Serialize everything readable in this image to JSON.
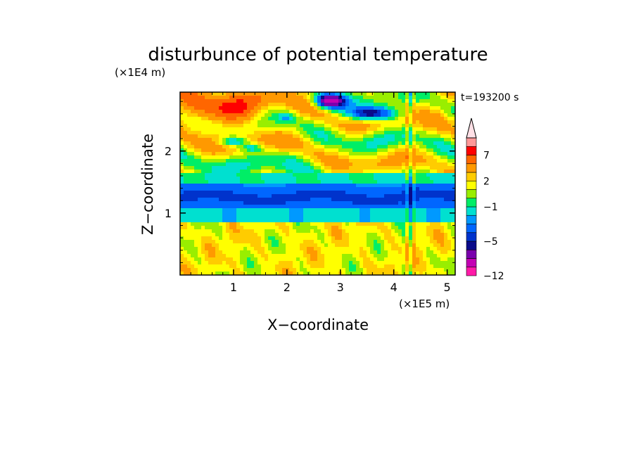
{
  "chart_data": {
    "type": "heatmap",
    "title": "disturbunce of potential temperature",
    "annotation": "t=193200 s",
    "xlabel": "X−coordinate",
    "ylabel": "Z−coordinate",
    "x_unit": "(×1E5 m)",
    "y_unit": "(×1E4 m)",
    "xlim": [
      0,
      5.15
    ],
    "ylim": [
      0,
      2.95
    ],
    "x_ticks": [
      1,
      2,
      3,
      4,
      5
    ],
    "x_tick_labels": [
      "1",
      "2",
      "3",
      "4",
      "5"
    ],
    "y_ticks": [
      1,
      2
    ],
    "y_tick_labels": [
      "1",
      "2"
    ],
    "grid": false,
    "colorbar": {
      "position": "right",
      "extend": "max",
      "levels": [
        -12,
        -10,
        -8,
        -6,
        -5,
        -4,
        -3,
        -2,
        -1,
        0,
        1,
        2,
        3,
        5,
        7,
        9,
        11
      ],
      "colors": [
        "#ff1aa8",
        "#c400b4",
        "#7a00ad",
        "#0a0a8a",
        "#0033cc",
        "#0066ff",
        "#0099ff",
        "#00e0d0",
        "#00ee66",
        "#99ee00",
        "#ffff00",
        "#ffcc00",
        "#ff9900",
        "#ff6600",
        "#ff0000",
        "#ff9999"
      ],
      "extend_color": "#ffe0e6",
      "tick_values": [
        -12,
        -5,
        -1,
        2,
        7
      ],
      "tick_labels": [
        "−12",
        "−5",
        "−1",
        "2",
        "7"
      ]
    },
    "field_description_bands": [
      {
        "z_range": [
          0.0,
          0.85
        ],
        "value_range": [
          0,
          3
        ],
        "note": "yellow/green with orange patches"
      },
      {
        "z_range": [
          0.85,
          1.05
        ],
        "value_range": [
          -2,
          -1
        ],
        "note": "cyan band"
      },
      {
        "z_range": [
          1.05,
          1.45
        ],
        "value_range": [
          -5,
          -4
        ],
        "note": "blue band"
      },
      {
        "z_range": [
          1.45,
          1.65
        ],
        "value_range": [
          -2,
          0
        ],
        "note": "cyan/green band"
      },
      {
        "z_range": [
          1.65,
          2.3
        ],
        "value_range": [
          0,
          4
        ],
        "note": "green/yellow/orange wavy layers"
      },
      {
        "z_range": [
          2.3,
          2.95
        ],
        "value_range": [
          -6,
          8
        ],
        "note": "orange/red west, dark blue anomaly near x=2.5-4"
      }
    ]
  }
}
